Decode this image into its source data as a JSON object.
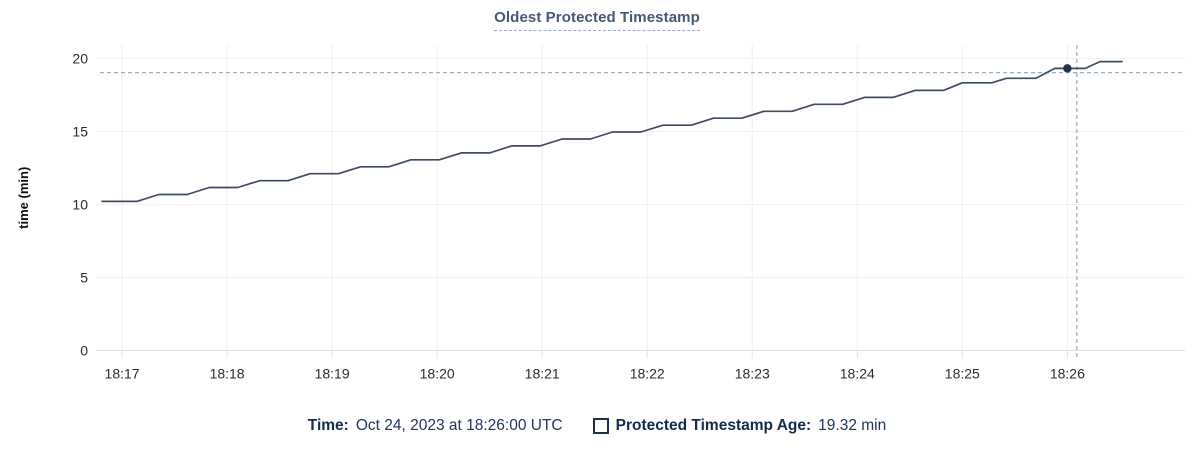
{
  "title": "Oldest Protected Timestamp",
  "legend": {
    "time_label": "Time:",
    "time_value": "Oct 24, 2023 at 18:26:00 UTC",
    "series_label": "Protected Timestamp Age:",
    "series_value": "19.32 min"
  },
  "colors": {
    "title_text": "#475872",
    "legend_text": "#1d3048",
    "line": "#3e4c62",
    "dot": "#26334d",
    "crosshair": "#9cafb8",
    "grid": "#efefef",
    "grid_zero": "#dedede",
    "axis_tick": "#e3e3e3",
    "tick_text": "#2b2b2b"
  },
  "chart_data": {
    "type": "line",
    "title": "Oldest Protected Timestamp",
    "xlabel": "",
    "ylabel": "time (min)",
    "x_unit_note": "x values are minutes after 18:00 UTC on Oct 24, 2023",
    "grid": true,
    "xlim": [
      16.79,
      27.12
    ],
    "ylim": [
      0,
      20.92
    ],
    "x_tick_times": [
      17,
      18,
      19,
      20,
      21,
      22,
      23,
      24,
      25,
      26
    ],
    "x_tick_labels": [
      "18:17",
      "18:18",
      "18:19",
      "18:20",
      "18:21",
      "18:22",
      "18:23",
      "18:24",
      "18:25",
      "18:26"
    ],
    "y_ticks": [
      0,
      5,
      10,
      15,
      20
    ],
    "series": [
      {
        "name": "Protected Timestamp Age",
        "unit": "min",
        "points": [
          [
            16.81,
            10.21
          ],
          [
            17.14,
            10.21
          ],
          [
            17.35,
            10.68
          ],
          [
            17.62,
            10.68
          ],
          [
            17.83,
            11.16
          ],
          [
            18.1,
            11.16
          ],
          [
            18.31,
            11.63
          ],
          [
            18.58,
            11.63
          ],
          [
            18.79,
            12.11
          ],
          [
            19.06,
            12.11
          ],
          [
            19.27,
            12.58
          ],
          [
            19.54,
            12.58
          ],
          [
            19.75,
            13.06
          ],
          [
            20.02,
            13.06
          ],
          [
            20.23,
            13.53
          ],
          [
            20.5,
            13.53
          ],
          [
            20.71,
            14.01
          ],
          [
            20.98,
            14.01
          ],
          [
            21.19,
            14.48
          ],
          [
            21.46,
            14.48
          ],
          [
            21.67,
            14.96
          ],
          [
            21.94,
            14.96
          ],
          [
            22.15,
            15.43
          ],
          [
            22.42,
            15.43
          ],
          [
            22.63,
            15.91
          ],
          [
            22.9,
            15.91
          ],
          [
            23.11,
            16.38
          ],
          [
            23.38,
            16.38
          ],
          [
            23.59,
            16.86
          ],
          [
            23.86,
            16.86
          ],
          [
            24.07,
            17.33
          ],
          [
            24.34,
            17.33
          ],
          [
            24.55,
            17.81
          ],
          [
            24.82,
            17.81
          ],
          [
            25.0,
            18.33
          ],
          [
            25.28,
            18.33
          ],
          [
            25.42,
            18.64
          ],
          [
            25.7,
            18.64
          ],
          [
            25.88,
            19.32
          ],
          [
            26.17,
            19.32
          ],
          [
            26.31,
            19.78
          ],
          [
            26.52,
            19.78
          ]
        ]
      }
    ],
    "hover": {
      "time_minutes": 26.0,
      "time_label": "Oct 24, 2023 at 18:26:00 UTC",
      "value": 19.32,
      "value_label": "19.32 min",
      "crosshair_x": 26.09,
      "crosshair_y_value": 19.03
    }
  }
}
